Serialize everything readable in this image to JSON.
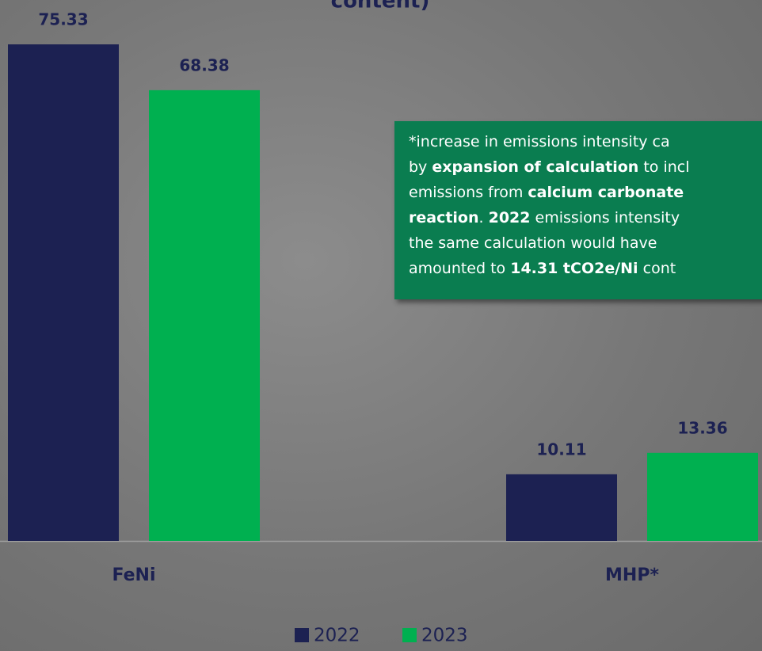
{
  "chart_data": {
    "type": "bar",
    "title": "content)",
    "categories": [
      "FeNi",
      "MHP*"
    ],
    "series": [
      {
        "name": "2022",
        "color": "#1c2152",
        "values": [
          75.33,
          10.11
        ]
      },
      {
        "name": "2023",
        "color": "#00b050",
        "values": [
          68.38,
          13.36
        ]
      }
    ],
    "ylim": [
      0,
      82.06
    ],
    "annotation": [
      [
        {
          "text": "*increase in emissions intensity ca",
          "bold": false
        }
      ],
      [
        {
          "text": "by ",
          "bold": false
        },
        {
          "text": "expansion of calculation",
          "bold": true
        },
        {
          "text": " to incl",
          "bold": false
        }
      ],
      [
        {
          "text": "emissions from ",
          "bold": false
        },
        {
          "text": "calcium carbonate",
          "bold": true
        }
      ],
      [
        {
          "text": "reaction",
          "bold": true
        },
        {
          "text": ". ",
          "bold": false
        },
        {
          "text": "2022",
          "bold": true
        },
        {
          "text": " emissions intensity",
          "bold": false
        }
      ],
      [
        {
          "text": "the same calculation would have",
          "bold": false
        }
      ],
      [
        {
          "text": "amounted to ",
          "bold": false
        },
        {
          "text": "14.31 tCO2e/Ni",
          "bold": true
        },
        {
          "text": " cont",
          "bold": false
        }
      ]
    ]
  }
}
